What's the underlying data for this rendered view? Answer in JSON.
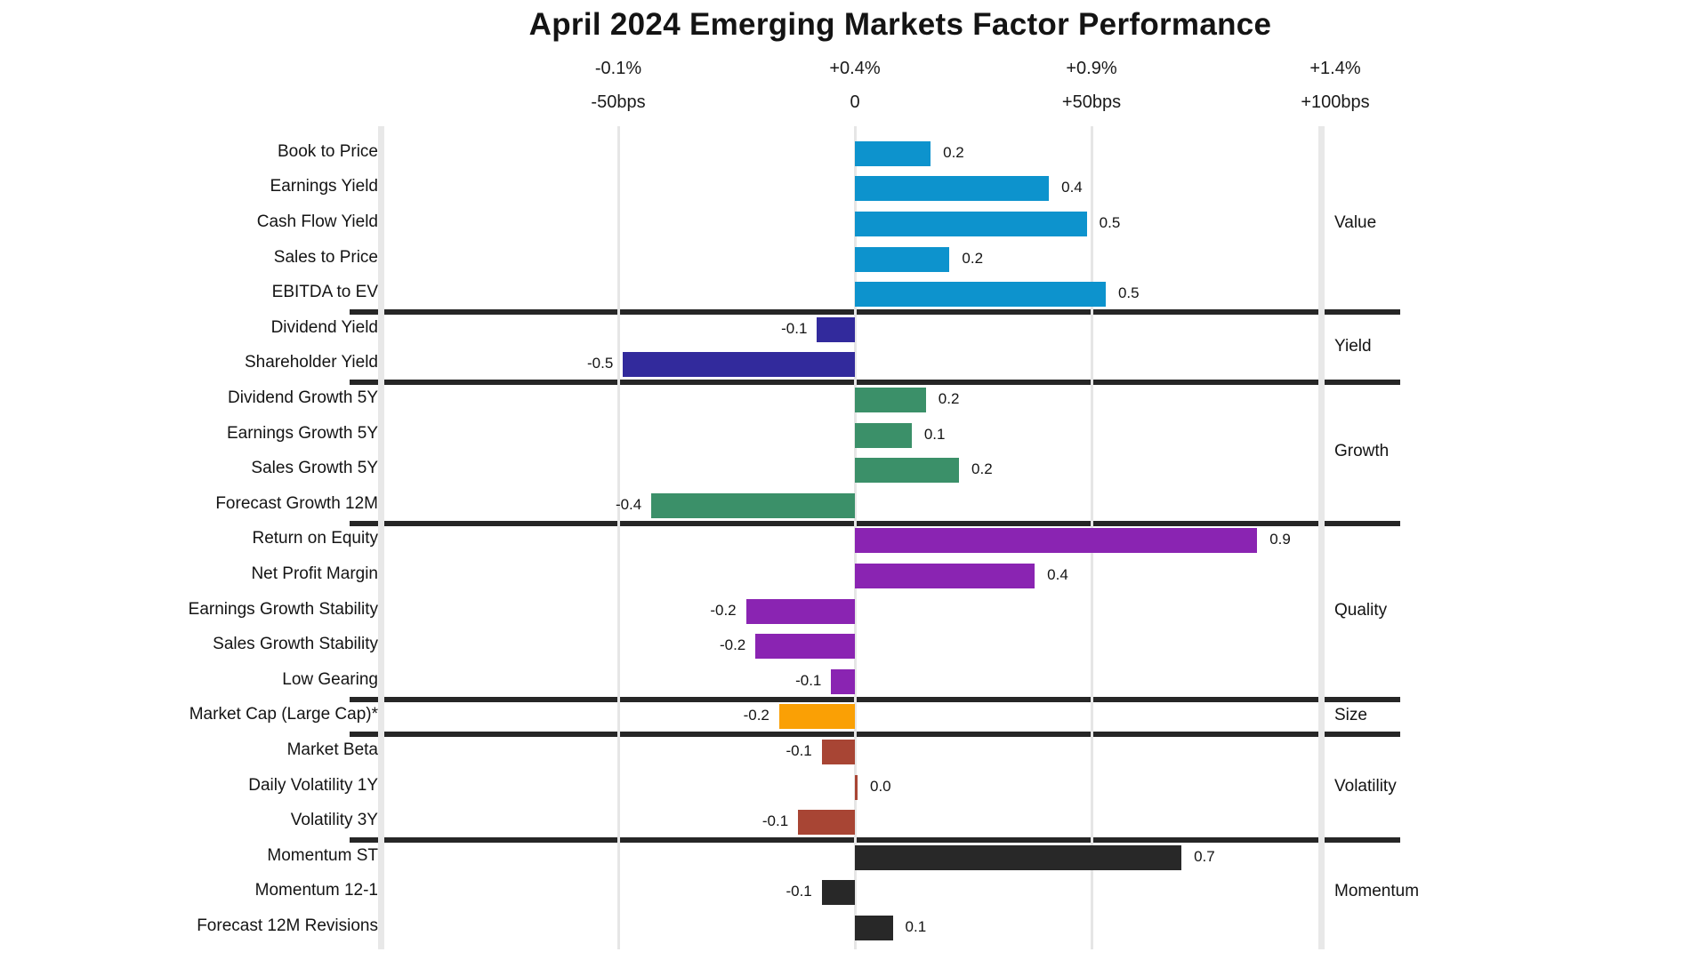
{
  "title": "April 2024 Emerging Markets Factor Performance",
  "chart_data": {
    "type": "bar",
    "orientation": "horizontal",
    "title": "April 2024 Emerging Markets Factor Performance",
    "x_axis": {
      "top_tick_labels": [
        "-0.1%",
        "+0.4%",
        "+0.9%",
        "+1.4%"
      ],
      "bottom_tick_labels": [
        "-50bps",
        "0",
        "+50bps",
        "+100bps"
      ],
      "tick_positions_bps": [
        -50,
        0,
        50,
        100
      ],
      "gridlines_bps": [
        -50,
        0,
        50
      ],
      "range_bps": [
        -100,
        100
      ],
      "grid": true
    },
    "legend_position": "right-group-labels",
    "groups": [
      {
        "name": "Value",
        "color": "#0d93cd",
        "rows": [
          {
            "label": "Book to Price",
            "value": "0.2",
            "extent": 0.16
          },
          {
            "label": "Earnings Yield",
            "value": "0.4",
            "extent": 0.41
          },
          {
            "label": "Cash Flow Yield",
            "value": "0.5",
            "extent": 0.49
          },
          {
            "label": "Sales to Price",
            "value": "0.2",
            "extent": 0.2
          },
          {
            "label": "EBITDA to EV",
            "value": "0.5",
            "extent": 0.53
          }
        ]
      },
      {
        "name": "Yield",
        "color": "#322a9c",
        "rows": [
          {
            "label": "Dividend Yield",
            "value": "-0.1",
            "extent": -0.08
          },
          {
            "label": "Shareholder Yield",
            "value": "-0.5",
            "extent": -0.49
          }
        ]
      },
      {
        "name": "Growth",
        "color": "#3b9069",
        "rows": [
          {
            "label": "Dividend Growth 5Y",
            "value": "0.2",
            "extent": 0.15
          },
          {
            "label": "Earnings Growth 5Y",
            "value": "0.1",
            "extent": 0.12
          },
          {
            "label": "Sales Growth 5Y",
            "value": "0.2",
            "extent": 0.22
          },
          {
            "label": "Forecast Growth 12M",
            "value": "-0.4",
            "extent": -0.43
          }
        ]
      },
      {
        "name": "Quality",
        "color": "#8a24b2",
        "rows": [
          {
            "label": "Return on Equity",
            "value": "0.9",
            "extent": 0.85
          },
          {
            "label": "Net Profit Margin",
            "value": "0.4",
            "extent": 0.38
          },
          {
            "label": "Earnings Growth Stability",
            "value": "-0.2",
            "extent": -0.23
          },
          {
            "label": "Sales Growth Stability",
            "value": "-0.2",
            "extent": -0.21
          },
          {
            "label": "Low Gearing",
            "value": "-0.1",
            "extent": -0.05
          }
        ]
      },
      {
        "name": "Size",
        "color": "#faa005",
        "rows": [
          {
            "label": "Market Cap (Large Cap)*",
            "value": "-0.2",
            "extent": -0.16
          }
        ]
      },
      {
        "name": "Volatility",
        "color": "#a84534",
        "rows": [
          {
            "label": "Market Beta",
            "value": "-0.1",
            "extent": -0.07
          },
          {
            "label": "Daily Volatility 1Y",
            "value": "0.0",
            "extent": 0.005
          },
          {
            "label": "Volatility 3Y",
            "value": "-0.1",
            "extent": -0.12
          }
        ]
      },
      {
        "name": "Momentum",
        "color": "#282828",
        "rows": [
          {
            "label": "Momentum ST",
            "value": "0.7",
            "extent": 0.69
          },
          {
            "label": "Momentum 12-1",
            "value": "-0.1",
            "extent": -0.07
          },
          {
            "label": "Forecast 12M Revisions",
            "value": "0.1",
            "extent": 0.08
          }
        ]
      }
    ]
  }
}
